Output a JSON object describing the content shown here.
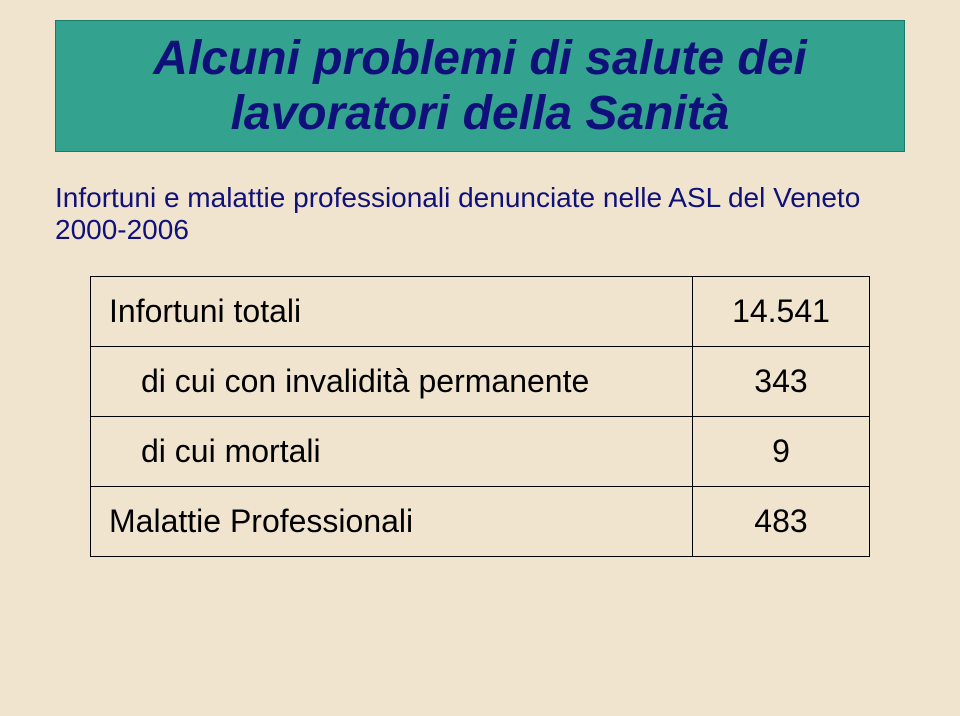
{
  "title_box": {
    "line1": "Alcuni problemi di salute dei",
    "line2": "lavoratori della Sanità",
    "background_color": "#33a38f",
    "border_color": "#1a7a6a",
    "text_color": "#10107a",
    "font_size": 48
  },
  "subtitle": {
    "text": "Infortuni e malattie professionali denunciate nelle ASL del Veneto 2000-2006",
    "text_color": "#10107a",
    "font_size": 28
  },
  "table": {
    "rows": [
      {
        "label": "Infortuni totali",
        "value": "14.541",
        "indent": false
      },
      {
        "label": "di cui con invalidità permanente",
        "value": "343",
        "indent": true
      },
      {
        "label": "di cui mortali",
        "value": "9",
        "indent": true
      },
      {
        "label": "Malattie Professionali",
        "value": "483",
        "indent": false
      }
    ],
    "border_color": "#000000",
    "font_size": 32
  },
  "page_background": "#f0e4ce"
}
